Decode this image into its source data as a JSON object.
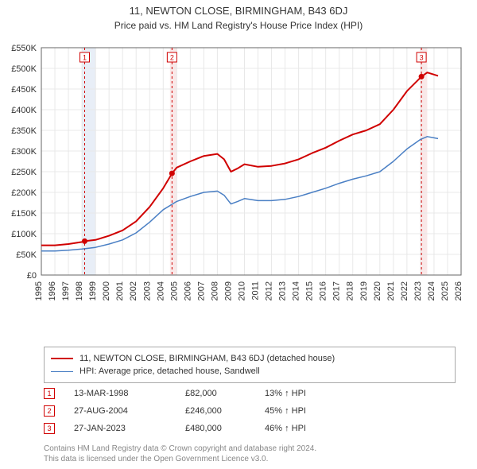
{
  "title": "11, NEWTON CLOSE, BIRMINGHAM, B43 6DJ",
  "subtitle": "Price paid vs. HM Land Registry's House Price Index (HPI)",
  "chart": {
    "type": "line",
    "background_color": "#ffffff",
    "grid_color": "#e8e8e8",
    "axis_color": "#666666",
    "y_axis": {
      "min": 0,
      "max": 550000,
      "tick_step": 50000,
      "tick_prefix": "£",
      "tick_suffix": "K",
      "label_fontsize": 11
    },
    "x_axis": {
      "min": 1995,
      "max": 2026,
      "ticks": [
        1995,
        1996,
        1997,
        1998,
        1999,
        2000,
        2001,
        2002,
        2003,
        2004,
        2005,
        2006,
        2007,
        2008,
        2009,
        2010,
        2011,
        2012,
        2013,
        2014,
        2015,
        2016,
        2017,
        2018,
        2019,
        2020,
        2021,
        2022,
        2023,
        2024,
        2025,
        2026
      ],
      "label_fontsize": 11,
      "label_rotation": -90
    },
    "series": [
      {
        "id": "property",
        "label": "11, NEWTON CLOSE, BIRMINGHAM, B43 6DJ (detached house)",
        "color": "#d00000",
        "line_width": 2,
        "data": [
          [
            1995.0,
            72000
          ],
          [
            1996.0,
            72000
          ],
          [
            1997.0,
            75000
          ],
          [
            1998.0,
            80000
          ],
          [
            1998.2,
            82000
          ],
          [
            1999.0,
            85000
          ],
          [
            2000.0,
            95000
          ],
          [
            2001.0,
            108000
          ],
          [
            2002.0,
            130000
          ],
          [
            2003.0,
            165000
          ],
          [
            2004.0,
            210000
          ],
          [
            2004.65,
            246000
          ],
          [
            2005.0,
            260000
          ],
          [
            2006.0,
            275000
          ],
          [
            2007.0,
            288000
          ],
          [
            2008.0,
            293000
          ],
          [
            2008.5,
            280000
          ],
          [
            2009.0,
            250000
          ],
          [
            2009.5,
            258000
          ],
          [
            2010.0,
            268000
          ],
          [
            2011.0,
            262000
          ],
          [
            2012.0,
            264000
          ],
          [
            2013.0,
            270000
          ],
          [
            2014.0,
            280000
          ],
          [
            2015.0,
            295000
          ],
          [
            2016.0,
            308000
          ],
          [
            2017.0,
            325000
          ],
          [
            2018.0,
            340000
          ],
          [
            2019.0,
            350000
          ],
          [
            2020.0,
            365000
          ],
          [
            2021.0,
            400000
          ],
          [
            2022.0,
            445000
          ],
          [
            2023.07,
            480000
          ],
          [
            2023.5,
            490000
          ],
          [
            2024.0,
            485000
          ],
          [
            2024.3,
            482000
          ]
        ]
      },
      {
        "id": "hpi",
        "label": "HPI: Average price, detached house, Sandwell",
        "color": "#4a7fc4",
        "line_width": 1.5,
        "data": [
          [
            1995.0,
            58000
          ],
          [
            1996.0,
            58000
          ],
          [
            1997.0,
            60000
          ],
          [
            1998.0,
            63000
          ],
          [
            1999.0,
            67000
          ],
          [
            2000.0,
            75000
          ],
          [
            2001.0,
            85000
          ],
          [
            2002.0,
            102000
          ],
          [
            2003.0,
            128000
          ],
          [
            2004.0,
            158000
          ],
          [
            2005.0,
            178000
          ],
          [
            2006.0,
            190000
          ],
          [
            2007.0,
            200000
          ],
          [
            2008.0,
            203000
          ],
          [
            2008.5,
            193000
          ],
          [
            2009.0,
            172000
          ],
          [
            2009.5,
            178000
          ],
          [
            2010.0,
            185000
          ],
          [
            2011.0,
            180000
          ],
          [
            2012.0,
            180000
          ],
          [
            2013.0,
            183000
          ],
          [
            2014.0,
            190000
          ],
          [
            2015.0,
            200000
          ],
          [
            2016.0,
            210000
          ],
          [
            2017.0,
            222000
          ],
          [
            2018.0,
            232000
          ],
          [
            2019.0,
            240000
          ],
          [
            2020.0,
            250000
          ],
          [
            2021.0,
            275000
          ],
          [
            2022.0,
            305000
          ],
          [
            2023.0,
            328000
          ],
          [
            2023.5,
            335000
          ],
          [
            2024.0,
            332000
          ],
          [
            2024.3,
            330000
          ]
        ]
      }
    ],
    "transaction_markers": [
      {
        "n": "1",
        "year": 1998.2,
        "value": 82000,
        "color": "#d00000",
        "band_start": 1998.0,
        "band_end": 1999.0,
        "band_color": "#e8eef7"
      },
      {
        "n": "2",
        "year": 2004.65,
        "value": 246000,
        "color": "#d00000",
        "band_start": 2004.5,
        "band_end": 2005.0,
        "band_color": "#f9e8e8"
      },
      {
        "n": "3",
        "year": 2023.07,
        "value": 480000,
        "color": "#d00000",
        "band_start": 2023.0,
        "band_end": 2023.5,
        "band_color": "#f9e8e8"
      }
    ]
  },
  "legend": {
    "items": [
      {
        "color": "#d00000",
        "width": 2,
        "label_ref": "chart.series.0.label"
      },
      {
        "color": "#4a7fc4",
        "width": 1.5,
        "label_ref": "chart.series.1.label"
      }
    ]
  },
  "transactions": [
    {
      "n": "1",
      "color": "#d00000",
      "date": "13-MAR-1998",
      "price": "£82,000",
      "delta": "13% ↑ HPI"
    },
    {
      "n": "2",
      "color": "#d00000",
      "date": "27-AUG-2004",
      "price": "£246,000",
      "delta": "45% ↑ HPI"
    },
    {
      "n": "3",
      "color": "#d00000",
      "date": "27-JAN-2023",
      "price": "£480,000",
      "delta": "46% ↑ HPI"
    }
  ],
  "attribution": {
    "line1": "Contains HM Land Registry data © Crown copyright and database right 2024.",
    "line2": "This data is licensed under the Open Government Licence v3.0."
  }
}
